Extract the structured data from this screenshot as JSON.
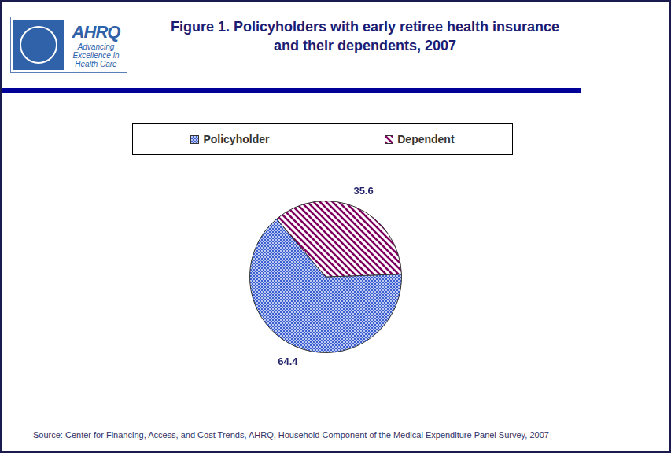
{
  "chart_data": {
    "type": "pie",
    "title": "Figure 1. Policyholders with early retiree health insurance and their dependents, 2007",
    "categories": [
      "Policyholder",
      "Dependent"
    ],
    "values": [
      64.4,
      35.6
    ],
    "colors": [
      "#3b5fd0",
      "#800060"
    ],
    "data_labels": true,
    "legend": "top",
    "source": "Source: Center for Financing, Access, and Cost Trends, AHRQ, Household Component of the Medical Expenditure Panel Survey, 2007",
    "logo": {
      "name": "AHRQ",
      "tagline": "Advancing Excellence in Health Care"
    }
  }
}
